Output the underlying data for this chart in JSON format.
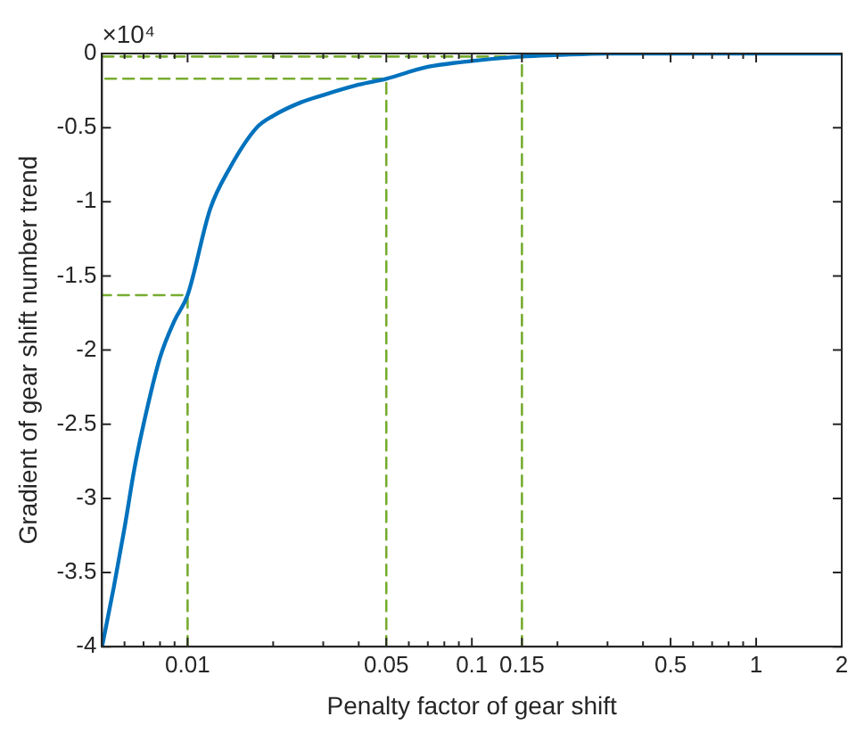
{
  "chart_data": {
    "type": "line",
    "xlabel": "Penalty factor of gear shift",
    "ylabel": "Gradient of gear shift number trend",
    "annotations": [
      "×10⁴"
    ],
    "log": "x",
    "grid": false,
    "legend": false,
    "marker": "none",
    "xlim": [
      0.005,
      2
    ],
    "ylim": [
      -4,
      0
    ],
    "xticks": [
      {
        "value": 0.006,
        "label": null
      },
      {
        "value": 0.007,
        "label": null
      },
      {
        "value": 0.008,
        "label": null
      },
      {
        "value": 0.009,
        "label": null
      },
      0.01,
      {
        "value": 0.02,
        "label": null
      },
      {
        "value": 0.03,
        "label": null
      },
      {
        "value": 0.04,
        "label": null
      },
      0.05,
      {
        "value": 0.06,
        "label": null
      },
      {
        "value": 0.07,
        "label": null
      },
      {
        "value": 0.08,
        "label": null
      },
      {
        "value": 0.09,
        "label": null
      },
      0.1,
      0.15,
      {
        "value": 0.2,
        "label": null
      },
      {
        "value": 0.3,
        "label": null
      },
      {
        "value": 0.4,
        "label": null
      },
      0.5,
      {
        "value": 0.6,
        "label": null
      },
      {
        "value": 0.7,
        "label": null
      },
      {
        "value": 0.8,
        "label": null
      },
      {
        "value": 0.9,
        "label": null
      },
      1,
      2
    ],
    "yticks": [
      -4,
      -3.5,
      -3,
      -2.5,
      -2,
      -1.5,
      -1,
      -0.5,
      0
    ],
    "series": [
      {
        "color": "#0072bd",
        "line_style": "solid",
        "x": [
          0.005,
          0.0055,
          0.006,
          0.0065,
          0.007,
          0.008,
          0.009,
          0.01,
          0.012,
          0.014,
          0.0175,
          0.02,
          0.025,
          0.03,
          0.04,
          0.05,
          0.07,
          0.1,
          0.15,
          0.2,
          0.3,
          0.5,
          1,
          2
        ],
        "values": [
          -4,
          -3.6,
          -3.2,
          -2.8,
          -2.5,
          -2.05,
          -1.8,
          -1.63,
          -1.05,
          -0.78,
          -0.5,
          -0.42,
          -0.33,
          -0.28,
          -0.21,
          -0.17,
          -0.09,
          -0.05,
          -0.02,
          -0.01,
          0,
          0,
          0,
          0
        ]
      },
      {
        "color": "#77ac30",
        "line_style": "dashed",
        "x": [
          0.01,
          0.01,
          0.005
        ],
        "values": [
          -4,
          -1.63,
          -1.63
        ]
      },
      {
        "color": "#77ac30",
        "line_style": "dashed",
        "x": [
          0.05,
          0.05,
          0.005
        ],
        "values": [
          -4,
          -0.17,
          -0.17
        ]
      },
      {
        "color": "#77ac30",
        "line_style": "dashed",
        "x": [
          0.15,
          0.15,
          0.005
        ],
        "values": [
          -4,
          -0.02,
          -0.02
        ]
      }
    ]
  }
}
